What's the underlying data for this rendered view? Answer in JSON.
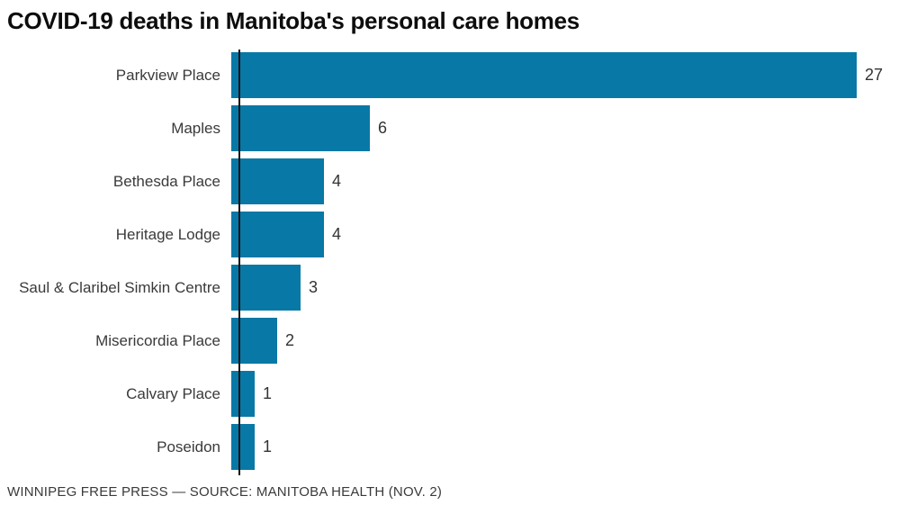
{
  "header": {
    "title": "COVID-19 deaths in Manitoba's personal care homes"
  },
  "footer": {
    "text": "WINNIPEG FREE PRESS — SOURCE: MANITOBA HEALTH (NOV. 2)"
  },
  "colors": {
    "bar": "#0878a6",
    "axis": "#111111",
    "title": "#0d0d0d",
    "text": "#3a3a3a"
  },
  "chart_data": {
    "type": "bar",
    "orientation": "horizontal",
    "title": "COVID-19 deaths in Manitoba's personal care homes",
    "xlabel": "",
    "ylabel": "",
    "categories": [
      "Parkview Place",
      "Maples",
      "Bethesda Place",
      "Heritage Lodge",
      "Saul & Claribel Simkin Centre",
      "Misericordia Place",
      "Calvary Place",
      "Poseidon"
    ],
    "values": [
      27,
      6,
      4,
      4,
      3,
      2,
      1,
      1
    ],
    "xlim": [
      0,
      27
    ],
    "grid": false,
    "legend": false,
    "value_labels": true,
    "source_note": "WINNIPEG FREE PRESS — SOURCE: MANITOBA HEALTH (NOV. 2)"
  }
}
